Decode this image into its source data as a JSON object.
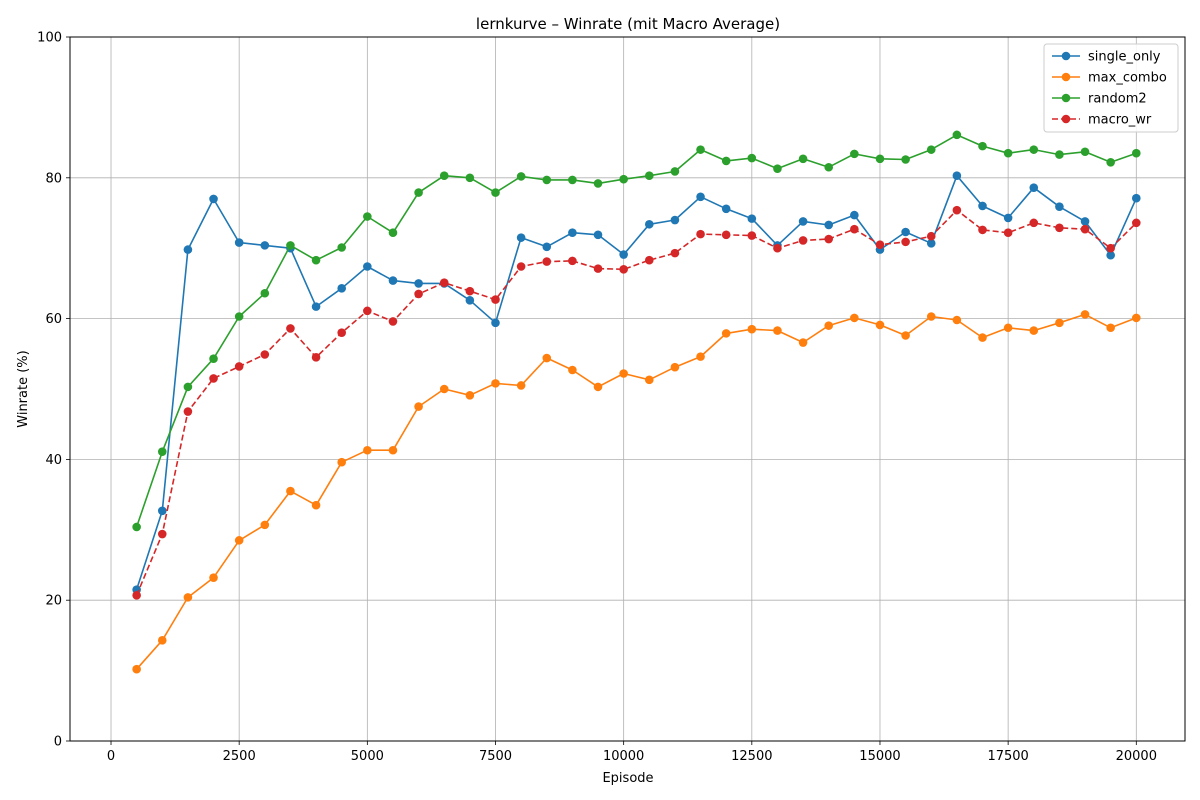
{
  "chart_data": {
    "type": "line",
    "title": "lernkurve – Winrate (mit Macro Average)",
    "xlabel": "Episode",
    "ylabel": "Winrate (%)",
    "xlim": [
      -800,
      20950
    ],
    "ylim": [
      0,
      100
    ],
    "xticks": [
      0,
      2500,
      5000,
      7500,
      10000,
      12500,
      15000,
      17500,
      20000
    ],
    "yticks": [
      0,
      20,
      40,
      60,
      80,
      100
    ],
    "grid": true,
    "legend_position": "top-right",
    "x": [
      500,
      1000,
      1500,
      2000,
      2500,
      3000,
      3500,
      4000,
      4500,
      5000,
      5500,
      6000,
      6500,
      7000,
      7500,
      8000,
      8500,
      9000,
      9500,
      10000,
      10500,
      11000,
      11500,
      12000,
      12500,
      13000,
      13500,
      14000,
      14500,
      15000,
      15500,
      16000,
      16500,
      17000,
      17500,
      18000,
      18500,
      19000,
      19500,
      20000
    ],
    "series": [
      {
        "name": "single_only",
        "color": "#1f77b4",
        "style": "solid",
        "values": [
          21.5,
          32.7,
          69.8,
          77.0,
          70.8,
          70.4,
          70.0,
          61.7,
          64.3,
          67.4,
          65.4,
          65.0,
          65.0,
          62.6,
          59.4,
          71.5,
          70.2,
          72.2,
          71.9,
          69.1,
          73.4,
          74.0,
          77.3,
          75.6,
          74.2,
          70.4,
          73.8,
          73.3,
          74.7,
          69.8,
          72.3,
          70.7,
          80.3,
          76.0,
          74.3,
          78.6,
          75.9,
          73.8,
          69.0,
          77.1
        ]
      },
      {
        "name": "max_combo",
        "color": "#ff7f0e",
        "style": "solid",
        "values": [
          10.2,
          14.3,
          20.4,
          23.2,
          28.5,
          30.7,
          35.5,
          33.5,
          39.6,
          41.3,
          41.3,
          47.5,
          50.0,
          49.1,
          50.8,
          50.5,
          54.4,
          52.7,
          50.3,
          52.2,
          51.3,
          53.1,
          54.6,
          57.9,
          58.5,
          58.3,
          56.6,
          59.0,
          60.1,
          59.1,
          57.6,
          60.3,
          59.8,
          57.3,
          58.7,
          58.3,
          59.4,
          60.6,
          58.7,
          60.1
        ]
      },
      {
        "name": "random2",
        "color": "#2ca02c",
        "style": "solid",
        "values": [
          30.4,
          41.1,
          50.3,
          54.3,
          60.3,
          63.6,
          70.4,
          68.3,
          70.1,
          74.5,
          72.2,
          77.9,
          80.3,
          80.0,
          77.9,
          80.2,
          79.7,
          79.7,
          79.2,
          79.8,
          80.3,
          80.9,
          84.0,
          82.4,
          82.8,
          81.3,
          82.7,
          81.5,
          83.4,
          82.7,
          82.6,
          84.0,
          86.1,
          84.5,
          83.5,
          84.0,
          83.3,
          83.7,
          82.2,
          83.5
        ]
      },
      {
        "name": "macro_wr",
        "color": "#d62728",
        "style": "dashed",
        "values": [
          20.7,
          29.4,
          46.8,
          51.5,
          53.2,
          54.9,
          58.6,
          54.5,
          58.0,
          61.1,
          59.6,
          63.5,
          65.1,
          63.9,
          62.7,
          67.4,
          68.1,
          68.2,
          67.1,
          67.0,
          68.3,
          69.3,
          72.0,
          71.9,
          71.8,
          70.0,
          71.1,
          71.3,
          72.7,
          70.5,
          70.9,
          71.7,
          75.4,
          72.6,
          72.2,
          73.6,
          72.9,
          72.7,
          70.0,
          73.6
        ]
      }
    ]
  }
}
